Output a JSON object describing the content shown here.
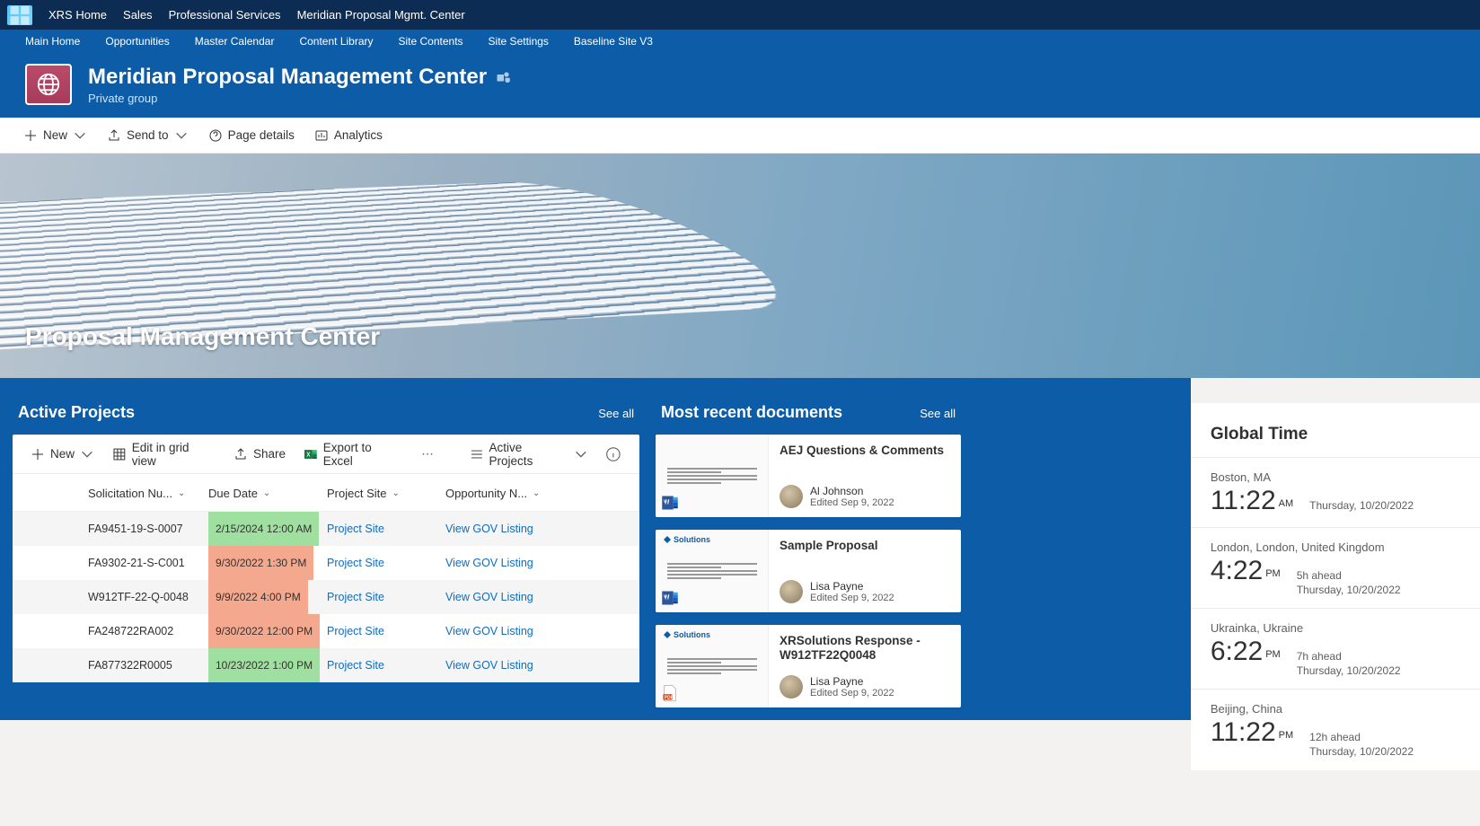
{
  "topNav": [
    "XRS Home",
    "Sales",
    "Professional Services",
    "Meridian Proposal Mgmt. Center"
  ],
  "subNav": [
    "Main Home",
    "Opportunities",
    "Master Calendar",
    "Content Library",
    "Site Contents",
    "Site Settings",
    "Baseline Site V3"
  ],
  "site": {
    "title": "Meridian Proposal Management Center",
    "subtitle": "Private group"
  },
  "commandBar": {
    "new": "New",
    "sendTo": "Send to",
    "pageDetails": "Page details",
    "analytics": "Analytics"
  },
  "hero": {
    "title": "Proposal Management Center"
  },
  "activeProjects": {
    "title": "Active Projects",
    "seeAll": "See all",
    "toolbar": {
      "new": "New",
      "editGrid": "Edit in grid view",
      "share": "Share",
      "export": "Export to Excel",
      "viewName": "Active Projects"
    },
    "columns": [
      "Solicitation Nu...",
      "Due Date",
      "Project Site",
      "Opportunity N..."
    ],
    "rows": [
      {
        "num": "FA9451-19-S-0007",
        "due": "2/15/2024 12:00 AM",
        "dueColor": "#9fdf9f",
        "site": "Project Site",
        "opp": "View GOV Listing",
        "alt": true
      },
      {
        "num": "FA9302-21-S-C001",
        "due": "9/30/2022 1:30 PM",
        "dueColor": "#f4a88e",
        "site": "Project Site",
        "opp": "View GOV Listing",
        "alt": false
      },
      {
        "num": "W912TF-22-Q-0048",
        "due": "9/9/2022 4:00 PM",
        "dueColor": "#f4a88e",
        "site": "Project Site",
        "opp": "View GOV Listing",
        "alt": true
      },
      {
        "num": "FA248722RA002",
        "due": "9/30/2022 12:00 PM",
        "dueColor": "#f4a88e",
        "site": "Project Site",
        "opp": "View GOV Listing",
        "alt": false
      },
      {
        "num": "FA877322R0005",
        "due": "10/23/2022 1:00 PM",
        "dueColor": "#9fdf9f",
        "site": "Project Site",
        "opp": "View GOV Listing",
        "alt": true
      }
    ]
  },
  "documents": {
    "title": "Most recent documents",
    "seeAll": "See all",
    "items": [
      {
        "title": "AEJ Questions & Comments",
        "author": "Al Johnson",
        "date": "Edited Sep 9, 2022",
        "type": "word",
        "brand": false
      },
      {
        "title": "Sample Proposal",
        "author": "Lisa Payne",
        "date": "Edited Sep 9, 2022",
        "type": "word",
        "brand": true
      },
      {
        "title": "XRSolutions Response - W912TF22Q0048",
        "author": "Lisa Payne",
        "date": "Edited Sep 9, 2022",
        "type": "pdf",
        "brand": true
      }
    ]
  },
  "globalTime": {
    "title": "Global Time",
    "clocks": [
      {
        "city": "Boston, MA",
        "time": "11:22",
        "ampm": "AM",
        "offset": "",
        "date": "Thursday, 10/20/2022"
      },
      {
        "city": "London, London, United Kingdom",
        "time": "4:22",
        "ampm": "PM",
        "offset": "5h ahead",
        "date": "Thursday, 10/20/2022"
      },
      {
        "city": "Ukrainka, Ukraine",
        "time": "6:22",
        "ampm": "PM",
        "offset": "7h ahead",
        "date": "Thursday, 10/20/2022"
      },
      {
        "city": "Beijing, China",
        "time": "11:22",
        "ampm": "PM",
        "offset": "12h ahead",
        "date": "Thursday, 10/20/2022"
      }
    ]
  }
}
